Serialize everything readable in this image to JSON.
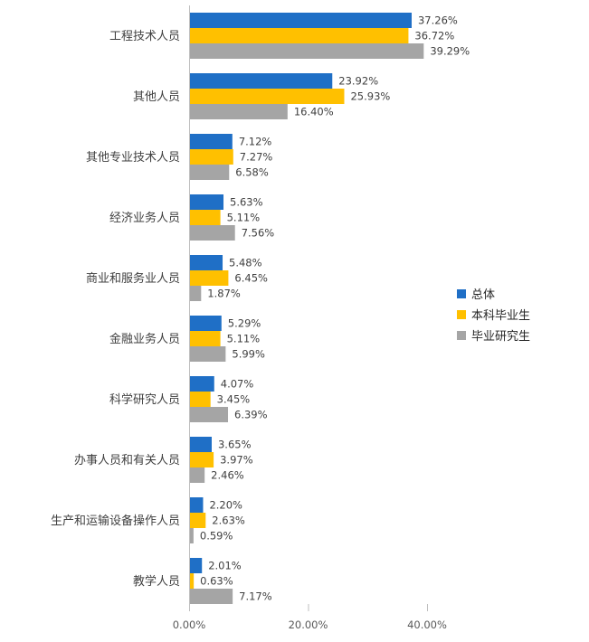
{
  "chart_data": {
    "type": "bar",
    "orientation": "horizontal",
    "title": "",
    "xlabel": "",
    "ylabel": "",
    "xlim": [
      0,
      40
    ],
    "x_ticks": [
      0,
      20,
      40
    ],
    "x_tick_labels": [
      "0.00%",
      "20.00%",
      "40.00%"
    ],
    "grid": false,
    "legend_position": "right",
    "categories": [
      "工程技术人员",
      "其他人员",
      "其他专业技术人员",
      "经济业务人员",
      "商业和服务业人员",
      "金融业务人员",
      "科学研究人员",
      "办事人员和有关人员",
      "生产和运输设备操作人员",
      "教学人员"
    ],
    "series": [
      {
        "name": "总体",
        "color": "#1F6FC6",
        "values": [
          37.26,
          23.92,
          7.12,
          5.63,
          5.48,
          5.29,
          4.07,
          3.65,
          2.2,
          2.01
        ],
        "labels": [
          "37.26%",
          "23.92%",
          "7.12%",
          "5.63%",
          "5.48%",
          "5.29%",
          "4.07%",
          "3.65%",
          "2.20%",
          "2.01%"
        ]
      },
      {
        "name": "本科毕业生",
        "color": "#FFC000",
        "values": [
          36.72,
          25.93,
          7.27,
          5.11,
          6.45,
          5.11,
          3.45,
          3.97,
          2.63,
          0.63
        ],
        "labels": [
          "36.72%",
          "25.93%",
          "7.27%",
          "5.11%",
          "6.45%",
          "5.11%",
          "3.45%",
          "3.97%",
          "2.63%",
          "0.63%"
        ]
      },
      {
        "name": "毕业研究生",
        "color": "#A5A5A5",
        "values": [
          39.29,
          16.4,
          6.58,
          7.56,
          1.87,
          5.99,
          6.39,
          2.46,
          0.59,
          7.17
        ],
        "labels": [
          "39.29%",
          "16.40%",
          "6.58%",
          "7.56%",
          "1.87%",
          "5.99%",
          "6.39%",
          "2.46%",
          "0.59%",
          "7.17%"
        ]
      }
    ]
  }
}
